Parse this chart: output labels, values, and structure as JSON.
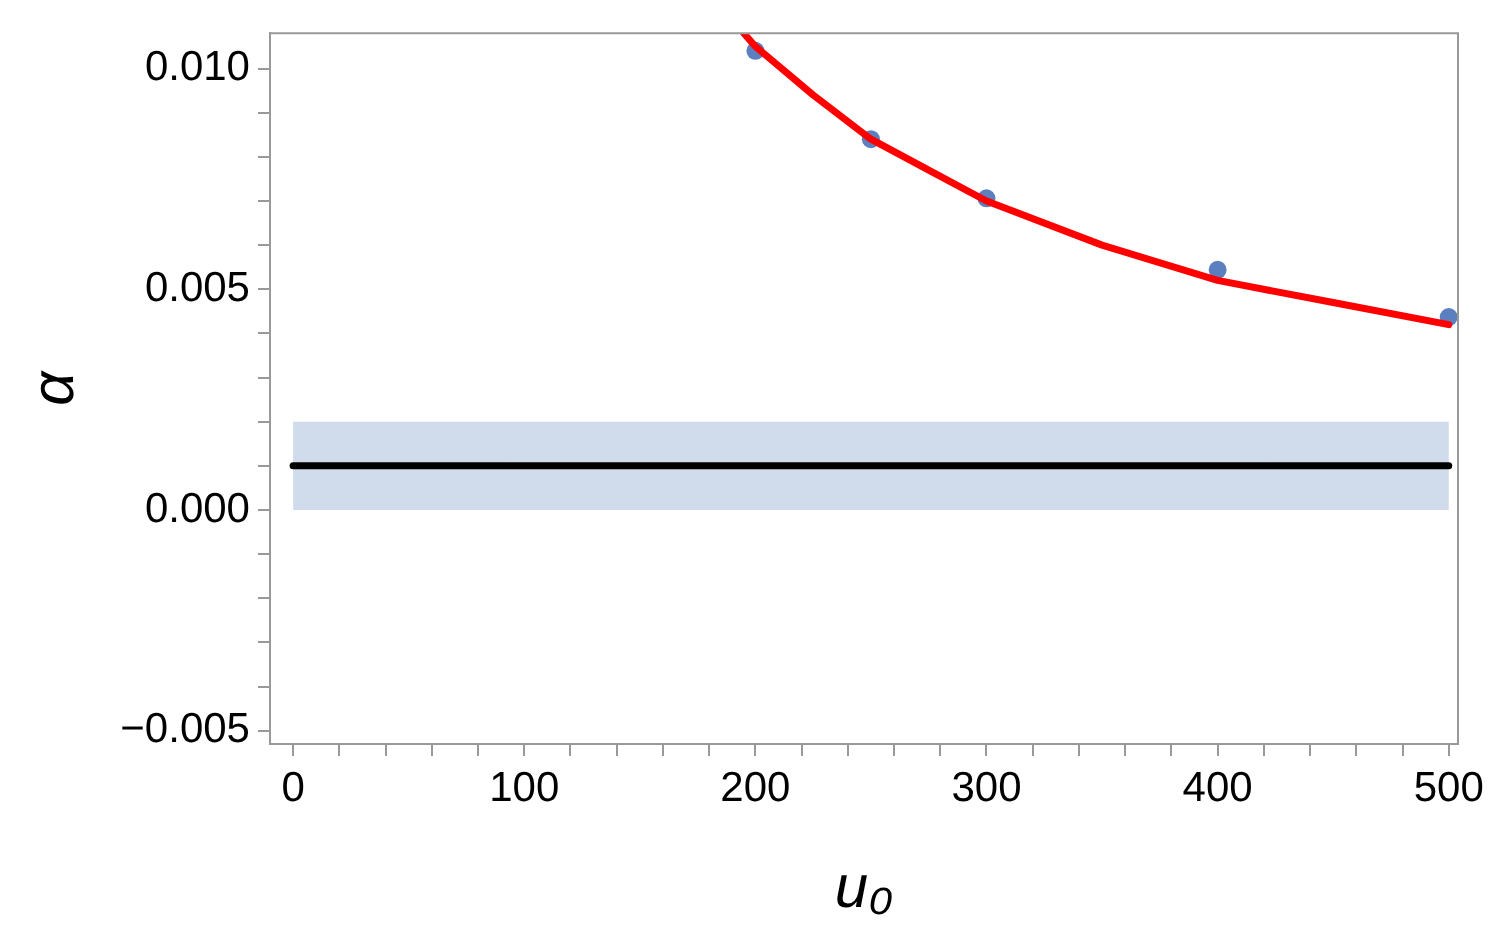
{
  "chart_data": {
    "type": "scatter",
    "xlabel": "u₀",
    "ylabel": "α",
    "xlim": [
      -10,
      504
    ],
    "ylim": [
      -0.0053,
      0.0108
    ],
    "xticks": [
      0,
      {
        "value": 20,
        "label": null
      },
      {
        "value": 40,
        "label": null
      },
      {
        "value": 60,
        "label": null
      },
      {
        "value": 80,
        "label": null
      },
      100,
      {
        "value": 120,
        "label": null
      },
      {
        "value": 140,
        "label": null
      },
      {
        "value": 160,
        "label": null
      },
      {
        "value": 180,
        "label": null
      },
      200,
      {
        "value": 220,
        "label": null
      },
      {
        "value": 240,
        "label": null
      },
      {
        "value": 260,
        "label": null
      },
      {
        "value": 280,
        "label": null
      },
      300,
      {
        "value": 320,
        "label": null
      },
      {
        "value": 340,
        "label": null
      },
      {
        "value": 360,
        "label": null
      },
      {
        "value": 380,
        "label": null
      },
      400,
      {
        "value": 420,
        "label": null
      },
      {
        "value": 440,
        "label": null
      },
      {
        "value": 460,
        "label": null
      },
      {
        "value": 480,
        "label": null
      },
      500
    ],
    "yticks": [
      {
        "value": -0.005,
        "label": "−0.005"
      },
      {
        "value": -0.004,
        "label": null
      },
      {
        "value": -0.003,
        "label": null
      },
      {
        "value": -0.002,
        "label": null
      },
      {
        "value": -0.001,
        "label": null
      },
      {
        "value": 0,
        "label": "0.000"
      },
      {
        "value": 0.001,
        "label": null
      },
      {
        "value": 0.002,
        "label": null
      },
      {
        "value": 0.003,
        "label": null
      },
      {
        "value": 0.004,
        "label": null
      },
      {
        "value": 0.005,
        "label": "0.005"
      },
      {
        "value": 0.006,
        "label": null
      },
      {
        "value": 0.007,
        "label": null
      },
      {
        "value": 0.008,
        "label": null
      },
      {
        "value": 0.009,
        "label": null
      },
      {
        "value": 0.01,
        "label": "0.010"
      }
    ],
    "grid": false,
    "legend": false,
    "series": [
      {
        "type": "line",
        "color": "#000000",
        "x": [
          0,
          500
        ],
        "values": [
          0.001,
          0.001
        ],
        "lower": [
          0,
          0
        ],
        "upper": [
          0.002,
          0.002
        ],
        "marker": "none"
      },
      {
        "type": "line",
        "color": "#ff0000",
        "x": [
          195,
          200,
          225,
          250,
          275,
          300,
          350,
          400,
          450,
          500
        ],
        "values": [
          0.0108,
          0.0105,
          0.0094,
          0.0084,
          0.0077,
          0.007,
          0.006,
          0.0052,
          0.0047,
          0.0042
        ],
        "marker": "none"
      },
      {
        "type": "scatter",
        "color": "#5b7fbf",
        "x": [
          200,
          250,
          300,
          400,
          500
        ],
        "values": [
          0.0104,
          0.0084,
          0.00706,
          0.00544,
          0.00437
        ],
        "marker": "circle"
      }
    ]
  }
}
